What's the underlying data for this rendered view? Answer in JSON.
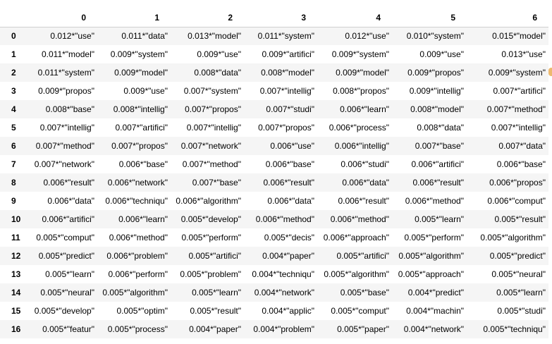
{
  "table": {
    "columns": [
      "0",
      "1",
      "2",
      "3",
      "4",
      "5",
      "6"
    ],
    "rows": [
      {
        "index": "0",
        "cells": [
          "0.012*\"use\"",
          "0.011*\"data\"",
          "0.013*\"model\"",
          "0.011*\"system\"",
          "0.012*\"use\"",
          "0.010*\"system\"",
          "0.015*\"model\""
        ]
      },
      {
        "index": "1",
        "cells": [
          "0.011*\"model\"",
          "0.009*\"system\"",
          "0.009*\"use\"",
          "0.009*\"artifici\"",
          "0.009*\"system\"",
          "0.009*\"use\"",
          "0.013*\"use\""
        ]
      },
      {
        "index": "2",
        "cells": [
          "0.011*\"system\"",
          "0.009*\"model\"",
          "0.008*\"data\"",
          "0.008*\"model\"",
          "0.009*\"model\"",
          "0.009*\"propos\"",
          "0.009*\"system\""
        ]
      },
      {
        "index": "3",
        "cells": [
          "0.009*\"propos\"",
          "0.009*\"use\"",
          "0.007*\"system\"",
          "0.007*\"intellig\"",
          "0.008*\"propos\"",
          "0.009*\"intellig\"",
          "0.007*\"artifici\""
        ]
      },
      {
        "index": "4",
        "cells": [
          "0.008*\"base\"",
          "0.008*\"intellig\"",
          "0.007*\"propos\"",
          "0.007*\"studi\"",
          "0.006*\"learn\"",
          "0.008*\"model\"",
          "0.007*\"method\""
        ]
      },
      {
        "index": "5",
        "cells": [
          "0.007*\"intellig\"",
          "0.007*\"artifici\"",
          "0.007*\"intellig\"",
          "0.007*\"propos\"",
          "0.006*\"process\"",
          "0.008*\"data\"",
          "0.007*\"intellig\""
        ]
      },
      {
        "index": "6",
        "cells": [
          "0.007*\"method\"",
          "0.007*\"propos\"",
          "0.007*\"network\"",
          "0.006*\"use\"",
          "0.006*\"intellig\"",
          "0.007*\"base\"",
          "0.007*\"data\""
        ]
      },
      {
        "index": "7",
        "cells": [
          "0.007*\"network\"",
          "0.006*\"base\"",
          "0.007*\"method\"",
          "0.006*\"base\"",
          "0.006*\"studi\"",
          "0.006*\"artifici\"",
          "0.006*\"base\""
        ]
      },
      {
        "index": "8",
        "cells": [
          "0.006*\"result\"",
          "0.006*\"network\"",
          "0.007*\"base\"",
          "0.006*\"result\"",
          "0.006*\"data\"",
          "0.006*\"result\"",
          "0.006*\"propos\""
        ]
      },
      {
        "index": "9",
        "cells": [
          "0.006*\"data\"",
          "0.006*\"techniqu\"",
          "0.006*\"algorithm\"",
          "0.006*\"data\"",
          "0.006*\"result\"",
          "0.006*\"method\"",
          "0.006*\"comput\""
        ]
      },
      {
        "index": "10",
        "cells": [
          "0.006*\"artifici\"",
          "0.006*\"learn\"",
          "0.005*\"develop\"",
          "0.006*\"method\"",
          "0.006*\"method\"",
          "0.005*\"learn\"",
          "0.005*\"result\""
        ]
      },
      {
        "index": "11",
        "cells": [
          "0.005*\"comput\"",
          "0.006*\"method\"",
          "0.005*\"perform\"",
          "0.005*\"decis\"",
          "0.006*\"approach\"",
          "0.005*\"perform\"",
          "0.005*\"algorithm\""
        ]
      },
      {
        "index": "12",
        "cells": [
          "0.005*\"predict\"",
          "0.006*\"problem\"",
          "0.005*\"artifici\"",
          "0.004*\"paper\"",
          "0.005*\"artifici\"",
          "0.005*\"algorithm\"",
          "0.005*\"predict\""
        ]
      },
      {
        "index": "13",
        "cells": [
          "0.005*\"learn\"",
          "0.006*\"perform\"",
          "0.005*\"problem\"",
          "0.004*\"techniqu\"",
          "0.005*\"algorithm\"",
          "0.005*\"approach\"",
          "0.005*\"neural\""
        ]
      },
      {
        "index": "14",
        "cells": [
          "0.005*\"neural\"",
          "0.005*\"algorithm\"",
          "0.005*\"learn\"",
          "0.004*\"network\"",
          "0.005*\"base\"",
          "0.004*\"predict\"",
          "0.005*\"learn\""
        ]
      },
      {
        "index": "15",
        "cells": [
          "0.005*\"develop\"",
          "0.005*\"optim\"",
          "0.005*\"result\"",
          "0.004*\"applic\"",
          "0.005*\"comput\"",
          "0.004*\"machin\"",
          "0.005*\"studi\""
        ]
      },
      {
        "index": "16",
        "cells": [
          "0.005*\"featur\"",
          "0.005*\"process\"",
          "0.004*\"paper\"",
          "0.004*\"problem\"",
          "0.005*\"paper\"",
          "0.004*\"network\"",
          "0.005*\"techniqu\""
        ]
      }
    ]
  },
  "colors": {
    "row_stripe": "#f5f5f5",
    "header_rule": "#cfcfcf",
    "edge_mark": "#e8a84a"
  }
}
